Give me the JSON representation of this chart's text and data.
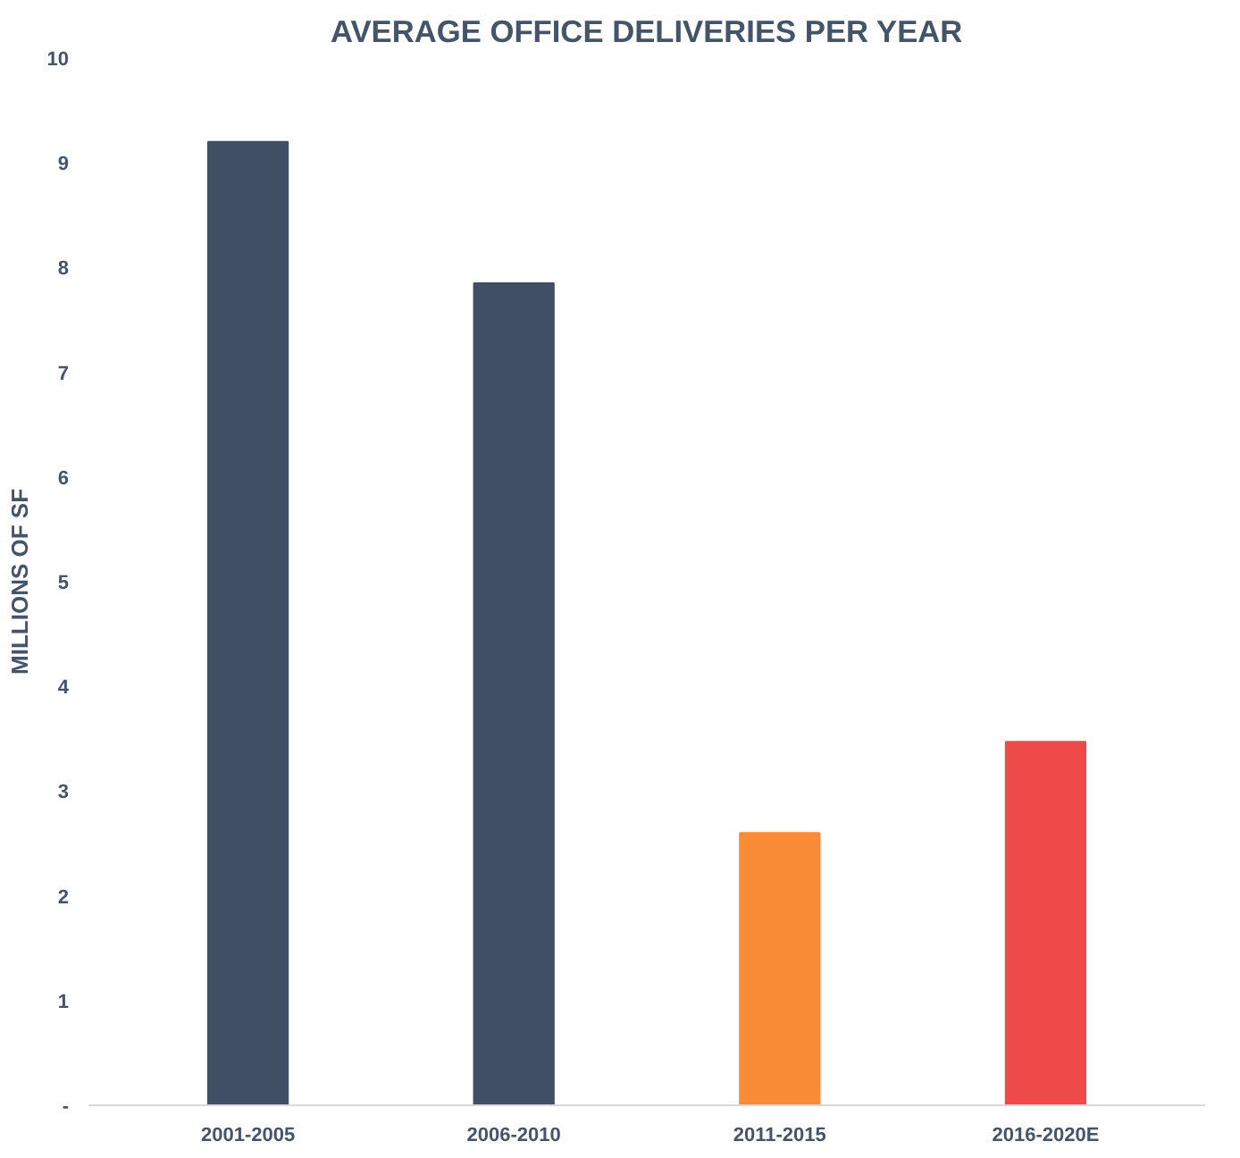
{
  "chart_data": {
    "type": "bar",
    "title": "AVERAGE OFFICE DELIVERIES PER YEAR",
    "ylabel": "MILLIONS OF SF",
    "categories": [
      "2001-2005",
      "2006-2010",
      "2011-2015",
      "2016-2020E"
    ],
    "values": [
      9.2,
      7.85,
      2.6,
      3.47
    ],
    "colors": [
      "#404f66",
      "#404f66",
      "#f98c35",
      "#ef4a4a"
    ],
    "ylim": [
      0,
      10
    ],
    "yticks": [
      {
        "value": 0,
        "label": "-"
      },
      1,
      2,
      3,
      4,
      5,
      6,
      7,
      8,
      9,
      10
    ],
    "grid": false
  }
}
